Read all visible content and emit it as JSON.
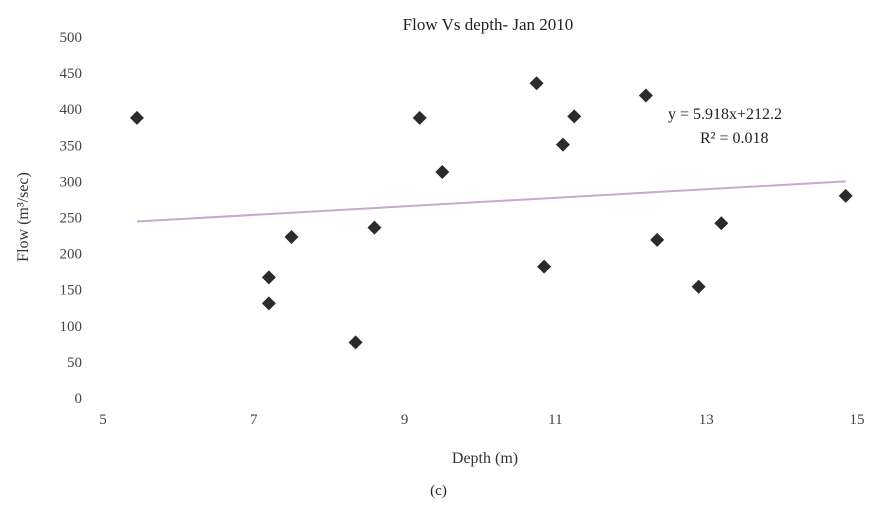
{
  "chart_data": {
    "type": "scatter",
    "title": "Flow Vs depth- Jan 2010",
    "xlabel": "Depth (m)",
    "ylabel": "Flow (m³/sec)",
    "xlim": [
      5,
      15
    ],
    "ylim": [
      0,
      500
    ],
    "x_ticks": [
      "5",
      "7",
      "9",
      "11",
      "13",
      "15"
    ],
    "y_ticks": [
      "0",
      "50",
      "100",
      "150",
      "200",
      "250",
      "300",
      "350",
      "400",
      "450",
      "500"
    ],
    "grid": false,
    "legend": "none",
    "series": [
      {
        "marker": "diamond",
        "color": "#2b2b2b",
        "x": [
          5.45,
          7.2,
          7.2,
          7.5,
          8.35,
          8.6,
          9.2,
          9.5,
          10.75,
          10.85,
          11.1,
          11.25,
          12.2,
          12.35,
          12.9,
          13.2,
          14.85
        ],
        "y": [
          388,
          167,
          131,
          223,
          77,
          236,
          388,
          313,
          436,
          182,
          351,
          390,
          419,
          219,
          154,
          242,
          280
        ]
      }
    ],
    "trendline": {
      "slope": 5.918,
      "intercept": 212.2,
      "x_range": [
        5.45,
        14.85
      ],
      "color": "#c8a8cf"
    },
    "annotations": [
      "y = 5.918x+212.2",
      "R² = 0.018"
    ]
  },
  "caption": "(c)"
}
